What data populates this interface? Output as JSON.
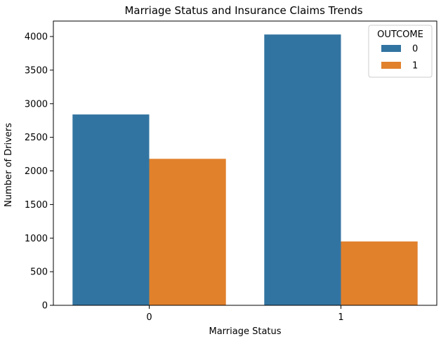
{
  "chart_data": {
    "type": "bar",
    "title": "Marriage Status and Insurance Claims Trends",
    "xlabel": "Marriage Status",
    "ylabel": "Number of Drivers",
    "categories": [
      "0",
      "1"
    ],
    "series": [
      {
        "name": "0",
        "color": "#3274a1",
        "values": [
          2840,
          4030
        ]
      },
      {
        "name": "1",
        "color": "#e1812c",
        "values": [
          2180,
          950
        ]
      }
    ],
    "ylim": [
      0,
      4230
    ],
    "yticks": [
      0,
      500,
      1000,
      1500,
      2000,
      2500,
      3000,
      3500,
      4000
    ],
    "legend": {
      "title": "OUTCOME",
      "position": "top-right"
    },
    "grid": false
  }
}
